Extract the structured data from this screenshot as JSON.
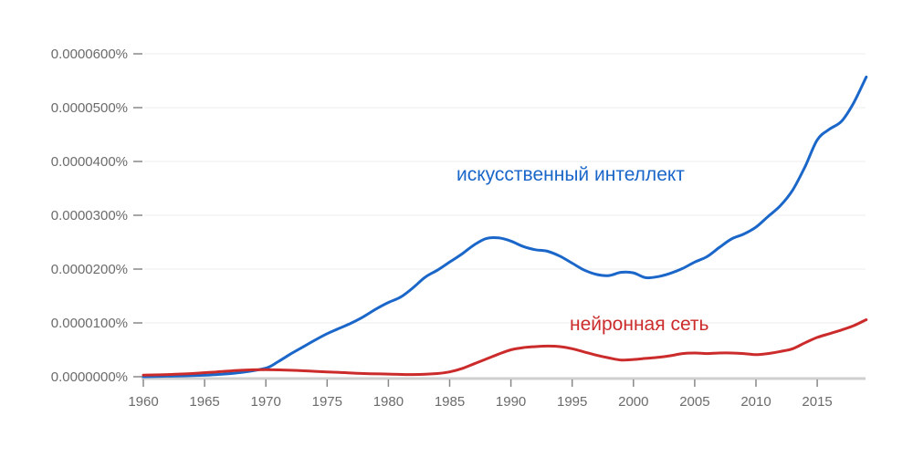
{
  "chart_data": {
    "type": "line",
    "title": "",
    "xlabel": "",
    "ylabel": "",
    "xlim": [
      1960,
      2019
    ],
    "ylim": [
      0,
      6e-05
    ],
    "grid": true,
    "legend": "inline annotations",
    "y_ticks": [
      "0.0000000%",
      "0.0000100%",
      "0.0000200%",
      "0.0000300%",
      "0.0000400%",
      "0.0000500%",
      "0.0000600%"
    ],
    "x_ticks": [
      "1960",
      "1965",
      "1970",
      "1975",
      "1980",
      "1985",
      "1990",
      "1995",
      "2000",
      "2005",
      "2010",
      "2015"
    ],
    "annotations": [
      {
        "text": "искусственный интеллект",
        "series": 0
      },
      {
        "text": "нейронная сеть",
        "series": 1
      }
    ],
    "series": [
      {
        "name": "искусственный интеллект",
        "color": "#1a66c9",
        "unit": "percent",
        "points": [
          [
            1960,
            0.0
          ],
          [
            1962,
            1e-07
          ],
          [
            1964,
            2e-07
          ],
          [
            1966,
            4e-07
          ],
          [
            1968,
            8e-07
          ],
          [
            1970,
            1.6e-06
          ],
          [
            1971,
            2.8e-06
          ],
          [
            1972,
            4.2e-06
          ],
          [
            1973,
            5.5e-06
          ],
          [
            1974,
            6.8e-06
          ],
          [
            1975,
            8e-06
          ],
          [
            1976,
            9e-06
          ],
          [
            1977,
            1e-05
          ],
          [
            1978,
            1.12e-05
          ],
          [
            1979,
            1.26e-05
          ],
          [
            1980,
            1.38e-05
          ],
          [
            1981,
            1.48e-05
          ],
          [
            1982,
            1.65e-05
          ],
          [
            1983,
            1.85e-05
          ],
          [
            1984,
            1.98e-05
          ],
          [
            1985,
            2.13e-05
          ],
          [
            1986,
            2.28e-05
          ],
          [
            1987,
            2.45e-05
          ],
          [
            1988,
            2.57e-05
          ],
          [
            1989,
            2.58e-05
          ],
          [
            1990,
            2.52e-05
          ],
          [
            1991,
            2.42e-05
          ],
          [
            1992,
            2.36e-05
          ],
          [
            1993,
            2.33e-05
          ],
          [
            1994,
            2.24e-05
          ],
          [
            1995,
            2.11e-05
          ],
          [
            1996,
            1.98e-05
          ],
          [
            1997,
            1.9e-05
          ],
          [
            1998,
            1.88e-05
          ],
          [
            1999,
            1.94e-05
          ],
          [
            2000,
            1.93e-05
          ],
          [
            2001,
            1.84e-05
          ],
          [
            2002,
            1.86e-05
          ],
          [
            2003,
            1.92e-05
          ],
          [
            2004,
            2.01e-05
          ],
          [
            2005,
            2.13e-05
          ],
          [
            2006,
            2.23e-05
          ],
          [
            2007,
            2.4e-05
          ],
          [
            2008,
            2.56e-05
          ],
          [
            2009,
            2.65e-05
          ],
          [
            2010,
            2.78e-05
          ],
          [
            2011,
            2.98e-05
          ],
          [
            2012,
            3.18e-05
          ],
          [
            2013,
            3.47e-05
          ],
          [
            2014,
            3.9e-05
          ],
          [
            2015,
            4.4e-05
          ],
          [
            2016,
            4.6e-05
          ],
          [
            2017,
            4.75e-05
          ],
          [
            2018,
            5.1e-05
          ],
          [
            2019,
            5.57e-05
          ]
        ]
      },
      {
        "name": "нейронная сеть",
        "color": "#cc2b2b",
        "unit": "percent",
        "points": [
          [
            1960,
            3e-07
          ],
          [
            1962,
            4e-07
          ],
          [
            1964,
            6e-07
          ],
          [
            1966,
            9e-07
          ],
          [
            1968,
            1.2e-06
          ],
          [
            1970,
            1.3e-06
          ],
          [
            1972,
            1.2e-06
          ],
          [
            1974,
            1e-06
          ],
          [
            1976,
            8e-07
          ],
          [
            1978,
            6e-07
          ],
          [
            1980,
            5e-07
          ],
          [
            1982,
            4e-07
          ],
          [
            1984,
            6e-07
          ],
          [
            1985,
            9e-07
          ],
          [
            1986,
            1.5e-06
          ],
          [
            1987,
            2.4e-06
          ],
          [
            1988,
            3.3e-06
          ],
          [
            1989,
            4.2e-06
          ],
          [
            1990,
            5e-06
          ],
          [
            1991,
            5.4e-06
          ],
          [
            1992,
            5.6e-06
          ],
          [
            1993,
            5.7e-06
          ],
          [
            1994,
            5.6e-06
          ],
          [
            1995,
            5.2e-06
          ],
          [
            1996,
            4.6e-06
          ],
          [
            1997,
            4e-06
          ],
          [
            1998,
            3.5e-06
          ],
          [
            1999,
            3.1e-06
          ],
          [
            2000,
            3.2e-06
          ],
          [
            2001,
            3.4e-06
          ],
          [
            2002,
            3.6e-06
          ],
          [
            2003,
            3.9e-06
          ],
          [
            2004,
            4.3e-06
          ],
          [
            2005,
            4.4e-06
          ],
          [
            2006,
            4.3e-06
          ],
          [
            2007,
            4.4e-06
          ],
          [
            2008,
            4.4e-06
          ],
          [
            2009,
            4.3e-06
          ],
          [
            2010,
            4.1e-06
          ],
          [
            2011,
            4.3e-06
          ],
          [
            2012,
            4.7e-06
          ],
          [
            2013,
            5.2e-06
          ],
          [
            2014,
            6.3e-06
          ],
          [
            2015,
            7.3e-06
          ],
          [
            2016,
            8e-06
          ],
          [
            2017,
            8.7e-06
          ],
          [
            2018,
            9.5e-06
          ],
          [
            2019,
            1.06e-05
          ]
        ]
      }
    ]
  }
}
